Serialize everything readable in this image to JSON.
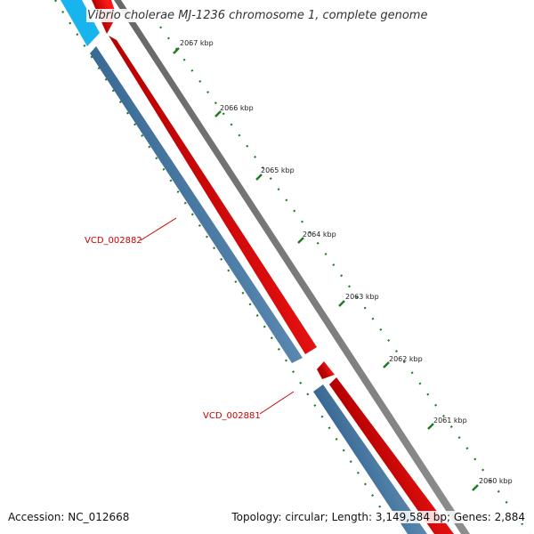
{
  "map": {
    "title": "Vibrio cholerae MJ-1236 chromosome 1, complete genome",
    "ticks": [
      {
        "label": "2067 kbp"
      },
      {
        "label": "2066 kbp"
      },
      {
        "label": "2065 kbp"
      },
      {
        "label": "2064 kbp"
      },
      {
        "label": "2063 kbp"
      },
      {
        "label": "2062 kbp"
      },
      {
        "label": "2061 kbp"
      },
      {
        "label": "2060 kbp"
      }
    ],
    "gene_labels": [
      {
        "text": "VCD_002882"
      },
      {
        "text": "VCD_002881"
      }
    ]
  },
  "footer": {
    "accession": "Accession: NC_012668",
    "summary": "Topology: circular; Length: 3,149,584 bp; Genes: 2,884"
  },
  "colors": {
    "forward_cds": "#ff0000",
    "reverse_cds": "#4f7fa8",
    "other_feature": "#18b4ee",
    "backbone": "#888888",
    "tick": "#1f7a1f",
    "gene_label": "#cc0000"
  }
}
